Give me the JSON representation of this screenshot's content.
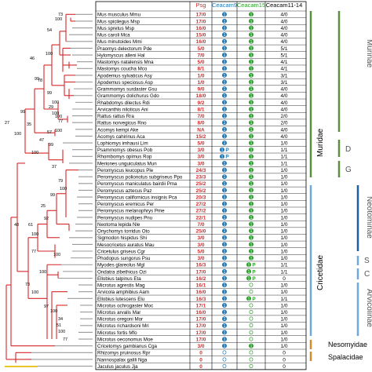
{
  "columns": {
    "species": "",
    "psg": "Psg",
    "ceacam9": "Ceacam9",
    "ceacam15": "Ceacam15",
    "ceacam11_14": "Ceacam11-14"
  },
  "colors": {
    "tree": "#d62728",
    "tree_alt": "#999999",
    "psg": "#d62728",
    "ceacam9": "#1f77b4",
    "ceacam15": "#2ca02c",
    "text": "#000000",
    "muridae_bar": "#5b8f3a",
    "cricetidae_bar": "#6fa8dc",
    "nesomyidae_bar": "#d58a2c",
    "spalacidae_bar": "#d58a2c",
    "outgroup_bar": "#e8c52a"
  },
  "rows": [
    {
      "species": "Mus musculus Mmu",
      "psg": "17/0",
      "c9": "1",
      "c15": "1",
      "c1114": "4/0"
    },
    {
      "species": "Mus spicilegus Msp",
      "psg": "17/0",
      "c9": "1",
      "c15": "1",
      "c1114": "4/0"
    },
    {
      "species": "Mus spretus Msp",
      "psg": "16/0",
      "c9": "1",
      "c15": "1",
      "c1114": "4/0"
    },
    {
      "species": "Mus caroli Mca",
      "psg": "15/0",
      "c9": "1",
      "c15": "1",
      "c1114": "4/0"
    },
    {
      "species": "Mus minutoides Mmi",
      "psg": "16/0",
      "c9": "1",
      "c15": "1",
      "c1114": "4/0"
    },
    {
      "species": "Praomys delectorum Pde",
      "psg": "5/0",
      "c9": "1",
      "c15": "1",
      "c1114": "5/1"
    },
    {
      "species": "Hylomyscus alleni Hal",
      "psg": "7/0",
      "c9": "1",
      "c15": "1",
      "c1114": "5/1"
    },
    {
      "species": "Mastomys natalensis Mna",
      "psg": "5/0",
      "c9": "1",
      "c15": "1",
      "c1114": "4/1"
    },
    {
      "species": "Mastomys coucha Mco",
      "psg": "8/1",
      "c9": "1",
      "c15": "1",
      "c1114": "4/1"
    },
    {
      "species": "Apodemus sylvaticus Asy",
      "psg": "1/0",
      "c9": "1",
      "c15": "1",
      "c1114": "3/1"
    },
    {
      "species": "Apodemus speciosus Asp",
      "psg": "1/0",
      "c9": "1",
      "c15": "1",
      "c1114": "3/1"
    },
    {
      "species": "Grammomys surdaster Gsu",
      "psg": "9/0",
      "c9": "1",
      "c15": "1",
      "c1114": "4/0"
    },
    {
      "species": "Grammomys dolichurus Gdo",
      "psg": "18/0",
      "c9": "1",
      "c15": "1",
      "c1114": "4/0"
    },
    {
      "species": "Rhabdomys dilectus Rdi",
      "psg": "9/2",
      "c9": "1",
      "c15": "1",
      "c1114": "4/0"
    },
    {
      "species": "Arvicanthis niloticus Ani",
      "psg": "8/1",
      "c9": "1",
      "c15": "1",
      "c1114": "4/0"
    },
    {
      "species": "Rattus rattus Rra",
      "psg": "7/0",
      "c9": "1",
      "c15": "1",
      "c1114": "2/0"
    },
    {
      "species": "Rattus norvegicus Rno",
      "psg": "8/0",
      "c9": "1",
      "c15": "1",
      "c1114": "2/0"
    },
    {
      "species": "Acomys kempi Ake",
      "psg": "NA",
      "c9": "1",
      "c15": "1",
      "c1114": "4/0"
    },
    {
      "species": "Acomys cahirinus Aca",
      "psg": "15/2",
      "c9": "1",
      "c15": "1",
      "c1114": "4/0"
    },
    {
      "species": "Lophiomys imhausi Lim",
      "psg": "5/0",
      "c9": "1",
      "c15": "1",
      "c1114": "1/0"
    },
    {
      "species": "Psammomys obesus Pob",
      "psg": "3/0",
      "c9": "1P",
      "c15": "1",
      "c1114": "1/1"
    },
    {
      "species": "Rhombomys opimus Rop",
      "psg": "3/0",
      "c9": "1P",
      "c15": "1",
      "c1114": "1/1"
    },
    {
      "species": "Meriones unguiculatus Mun",
      "psg": "3/0",
      "c9": "1",
      "c15": "1",
      "c1114": "1/1"
    },
    {
      "species": "Peromyscus leucopus Ple",
      "psg": "24/3",
      "c9": "1",
      "c15": "1",
      "c1114": "1/0"
    },
    {
      "species": "Peromyscus polionotus subgriseus Ppo",
      "psg": "23/3",
      "c9": "1",
      "c15": "1",
      "c1114": "1/0"
    },
    {
      "species": "Peromyscus maniculatus bairdii Pma",
      "psg": "25/2",
      "c9": "1",
      "c15": "1",
      "c1114": "1/0"
    },
    {
      "species": "Peromyscus aztecus Paz",
      "psg": "25/2",
      "c9": "1",
      "c15": "1",
      "c1114": "1/0"
    },
    {
      "species": "Peromyscus californicus insignis Pca",
      "psg": "20/3",
      "c9": "1",
      "c15": "1",
      "c1114": "1/0"
    },
    {
      "species": "Peromyscus eremicus Per",
      "psg": "27/2",
      "c9": "1",
      "c15": "1",
      "c1114": "1/0"
    },
    {
      "species": "Peromyscus melanophrys Pme",
      "psg": "27/2",
      "c9": "1",
      "c15": "1",
      "c1114": "1/0"
    },
    {
      "species": "Peromyscus nudipes Pnu",
      "psg": "22/1",
      "c9": "1",
      "c15": "1",
      "c1114": "1/0"
    },
    {
      "species": "Neotoma lepida Nle",
      "psg": "7/0",
      "c9": "1",
      "c15": "1",
      "c1114": "1/0"
    },
    {
      "species": "Onychomys torridus Oto",
      "psg": "25/0",
      "c9": "1",
      "c15": "1",
      "c1114": "1/0"
    },
    {
      "species": "Sigmodon hispidus Shi",
      "psg": "3/0",
      "c9": "1",
      "c15": "1",
      "c1114": "1/0"
    },
    {
      "species": "Mesocricetus auratus Mau",
      "psg": "3/0",
      "c9": "1",
      "c15": "1",
      "c1114": "1/0"
    },
    {
      "species": "Cricetulus griseus Cgr",
      "psg": "5/0",
      "c9": "1",
      "c15": "1",
      "c1114": "1/0"
    },
    {
      "species": "Phodopus sungorus Psu",
      "psg": "3/0",
      "c9": "1",
      "c15": "1",
      "c1114": "1/0"
    },
    {
      "species": "Myodes glareolus Mgl",
      "psg": "16/3",
      "c9": "1",
      "c15": "1P",
      "c1114": "1/1"
    },
    {
      "species": "Ondatra zibethicus Ozi",
      "psg": "17/0",
      "c9": "1",
      "c15": "1P",
      "c1114": "1/1"
    },
    {
      "species": "Ellobius talpinus Eta",
      "psg": "16/2",
      "c9": "1",
      "c15": "1P",
      "c1114": "0"
    },
    {
      "species": "Microtus agrestis Mag",
      "psg": "16/1",
      "c9": "1",
      "c15": "O",
      "c1114": "1/0"
    },
    {
      "species": "Arvicola amphibius Aam",
      "psg": "16/0",
      "c9": "1",
      "c15": "O",
      "c1114": "1/0"
    },
    {
      "species": "Ellobius lutescens Elu",
      "psg": "16/3",
      "c9": "1",
      "c15": "1P",
      "c1114": "1/1"
    },
    {
      "species": "Microtus ochrogaster Moc",
      "psg": "17/1",
      "c9": "1",
      "c15": "O",
      "c1114": "1/0"
    },
    {
      "species": "Microtus arvalis Mar",
      "psg": "16/0",
      "c9": "1",
      "c15": "O",
      "c1114": "1/0"
    },
    {
      "species": "Microtus oregoni Mor",
      "psg": "17/0",
      "c9": "1",
      "c15": "O",
      "c1114": "1/0"
    },
    {
      "species": "Microtus richardsoni Mri",
      "psg": "17/0",
      "c9": "1",
      "c15": "O",
      "c1114": "1/0"
    },
    {
      "species": "Microtus fortis Mfo",
      "psg": "17/0",
      "c9": "1",
      "c15": "O",
      "c1114": "1/0"
    },
    {
      "species": "Microtus oeconomus Moe",
      "psg": "17/0",
      "c9": "1",
      "c15": "O",
      "c1114": "1/0"
    },
    {
      "species": "Cricetomys gambianus Cga",
      "psg": "3/0",
      "c9": "1",
      "c15": "1",
      "c1114": "1/0"
    },
    {
      "species": "Rhizomys pruinosus Rpr",
      "psg": "0",
      "c9": "O",
      "c15": "O",
      "c1114": "0"
    },
    {
      "species": "Nannospalax galili Nga",
      "psg": "0",
      "c9": "O",
      "c15": "O",
      "c1114": "0"
    },
    {
      "species": "Jaculus jaculus Jja",
      "psg": "0",
      "c9": "O",
      "c15": "O",
      "c1114": "0"
    }
  ],
  "bootstrap": [
    "73",
    "100",
    "54",
    "46",
    "100",
    "99",
    "78",
    "99",
    "100",
    "29",
    "100",
    "77",
    "100",
    "100",
    "57",
    "47",
    "100",
    "99",
    "99",
    "27",
    "35",
    "100",
    "37",
    "79",
    "100",
    "99",
    "25",
    "92",
    "48",
    "61",
    "100",
    "77",
    "100",
    "100",
    "73",
    "100",
    "97",
    "100",
    "34",
    "51",
    "100",
    "77"
  ],
  "family_labels": {
    "muridae": "Muridae",
    "cricetidae": "Cricetidae",
    "nesomyidae": "Nesomyidae",
    "spalacidae": "Spalacidae"
  },
  "clipped_labels": {
    "murinae": "Murinae",
    "d": "D",
    "g": "G",
    "neotominae": "Neotominae",
    "s": "S",
    "c": "C",
    "arvicolinae": "Arvicolinae"
  }
}
